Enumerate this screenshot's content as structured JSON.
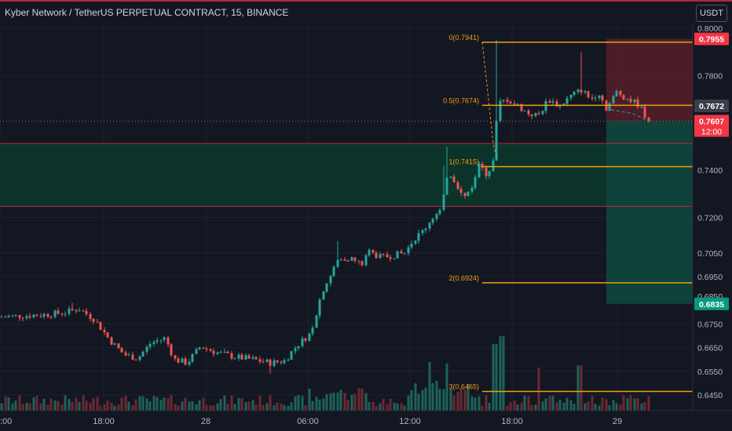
{
  "header": {
    "title": "Kyber Network / TetherUS PERPETUAL CONTRACT, 15, BINANCE",
    "currency_label": "USDT"
  },
  "chart_data": {
    "type": "candlestick",
    "title": "Kyber Network / TetherUS PERPETUAL CONTRACT, 15, BINANCE",
    "ylim": [
      0.6405,
      0.803
    ],
    "x_ticks": [
      ":00",
      "18:00",
      "28",
      "06:00",
      "12:00",
      "18:00",
      "29"
    ],
    "y_ticks": [
      "0.8000",
      "0.7800",
      "0.7400",
      "0.7200",
      "0.7050",
      "0.6950",
      "0.6750",
      "0.6650",
      "0.6550",
      "0.6450"
    ],
    "fib_levels": [
      {
        "label": "0(0.7941)",
        "value": 0.7941
      },
      {
        "label": "0.5(0.7674)",
        "value": 0.7674
      },
      {
        "label": "1(0.7415)",
        "value": 0.7415
      },
      {
        "label": "2(0.6924)",
        "value": 0.6924
      },
      {
        "label": "3(0.6465)",
        "value": 0.6465
      }
    ],
    "price_labels": [
      {
        "text": "0.7955",
        "value": 0.7955,
        "color": "#f23645"
      },
      {
        "text": "0.7672",
        "value": 0.7672,
        "color": "#3c3f4a"
      },
      {
        "text": "0.7607",
        "value": 0.7607,
        "color": "#f23645",
        "sub": "12:00"
      },
      {
        "text": "0.6835",
        "value": 0.6835,
        "color": "#089981"
      }
    ],
    "zones": {
      "green_zone": [
        0.7247,
        0.7513
      ],
      "stop_box": [
        0.7607,
        0.7955
      ],
      "target_box": [
        0.6835,
        0.7607
      ],
      "current_price": 0.7607
    },
    "partial_tick_label": "0.6850",
    "colors": {
      "up": "#26a69a",
      "down": "#ef5350",
      "fib": "#f39c12",
      "level_line": "#c2263a"
    }
  }
}
